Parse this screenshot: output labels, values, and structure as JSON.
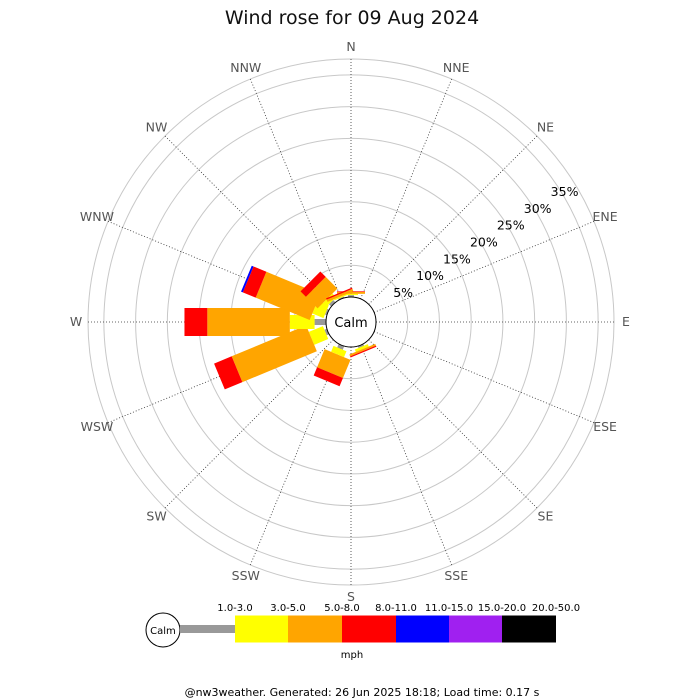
{
  "chart_data": {
    "type": "wind-rose",
    "title": "Wind rose for 09 Aug 2024",
    "directions": [
      "N",
      "NNE",
      "NE",
      "ENE",
      "E",
      "ESE",
      "SE",
      "SSE",
      "S",
      "SSW",
      "SW",
      "WSW",
      "W",
      "WNW",
      "NW",
      "NNW"
    ],
    "radial_ticks": [
      "5%",
      "10%",
      "15%",
      "20%",
      "25%",
      "30%",
      "35%"
    ],
    "radial_values": [
      5,
      10,
      15,
      20,
      25,
      30,
      35
    ],
    "r_max": 37.5,
    "calm_label": "Calm",
    "unit": "mph",
    "speed_bins": [
      {
        "label": "1.0-3.0",
        "color": "#999999"
      },
      {
        "label": "3.0-5.0",
        "color": "#ffff00"
      },
      {
        "label": "5.0-8.0",
        "color": "#ffa500"
      },
      {
        "label": "8.0-11.0",
        "color": "#ff0000"
      },
      {
        "label": "11.0-15.0",
        "color": "#0000ff"
      },
      {
        "label": "15.0-20.0",
        "color": "#a020f0"
      },
      {
        "label": "20.0-50.0",
        "color": "#000000"
      }
    ],
    "series": [
      {
        "direction": "N",
        "segments": [
          0.3,
          0.2,
          0.3,
          0.1,
          0,
          0,
          0
        ]
      },
      {
        "direction": "NNE",
        "segments": [
          0,
          0,
          0,
          0,
          0,
          0,
          0
        ]
      },
      {
        "direction": "NE",
        "segments": [
          0,
          0,
          0,
          0,
          0,
          0,
          0
        ]
      },
      {
        "direction": "ENE",
        "segments": [
          0,
          0,
          0,
          0,
          0,
          0,
          0
        ]
      },
      {
        "direction": "E",
        "segments": [
          0,
          0,
          0,
          0,
          0,
          0,
          0
        ]
      },
      {
        "direction": "ESE",
        "segments": [
          0,
          0,
          0,
          0,
          0,
          0,
          0
        ]
      },
      {
        "direction": "SE",
        "segments": [
          0,
          0,
          0,
          0,
          0,
          0,
          0
        ]
      },
      {
        "direction": "SSE",
        "segments": [
          0.3,
          0.4,
          0.3,
          0.2,
          0,
          0,
          0
        ]
      },
      {
        "direction": "S",
        "segments": [
          0,
          0,
          0,
          0,
          0,
          0,
          0
        ]
      },
      {
        "direction": "SSW",
        "segments": [
          0.6,
          1.0,
          3.1,
          1.4,
          0,
          0,
          0
        ]
      },
      {
        "direction": "SW",
        "segments": [
          0,
          0,
          0,
          0,
          0,
          0,
          0
        ]
      },
      {
        "direction": "WSW",
        "segments": [
          0.4,
          2.4,
          12.7,
          3.0,
          0,
          0,
          0
        ]
      },
      {
        "direction": "W",
        "segments": [
          1.8,
          3.9,
          13.0,
          3.6,
          0,
          0,
          0
        ]
      },
      {
        "direction": "WNW",
        "segments": [
          0.3,
          1.9,
          9.2,
          2.2,
          0.3,
          0,
          0
        ]
      },
      {
        "direction": "NW",
        "segments": [
          0.5,
          0.8,
          2.6,
          1.2,
          0,
          0,
          0
        ]
      },
      {
        "direction": "NNW",
        "segments": [
          0.2,
          0.2,
          0.4,
          0.2,
          0,
          0,
          0
        ]
      }
    ]
  },
  "footer": "@nw3weather. Generated: 26 Jun 2025 18:18; Load time: 0.17 s"
}
